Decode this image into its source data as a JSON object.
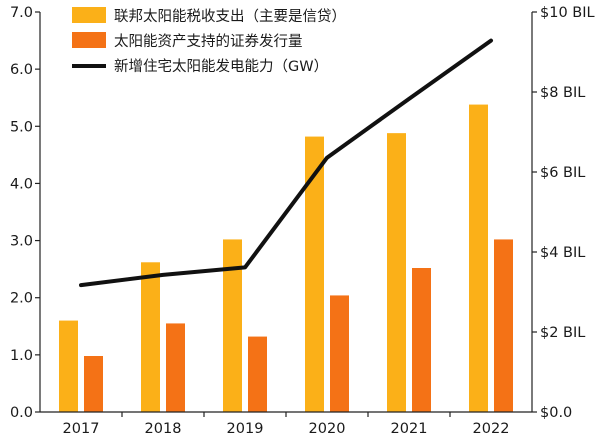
{
  "chart_data": {
    "type": "bar",
    "categories": [
      "2017",
      "2018",
      "2019",
      "2020",
      "2021",
      "2022"
    ],
    "series": [
      {
        "name": "联邦太阳能税收支出（主要是信贷）",
        "type": "bar",
        "axis": "left",
        "color": "#FBB018",
        "values": [
          1.6,
          2.62,
          3.02,
          4.82,
          4.88,
          5.38
        ]
      },
      {
        "name": "太阳能资产支持的证券发行量",
        "type": "bar",
        "axis": "left",
        "color": "#F47216",
        "values": [
          0.98,
          1.55,
          1.32,
          2.04,
          2.52,
          3.02
        ]
      },
      {
        "name": "新增住宅太阳能发电能力（GW）",
        "type": "line",
        "axis": "left",
        "color": "#111111",
        "values": [
          2.22,
          2.4,
          2.53,
          4.45,
          5.48,
          6.5
        ]
      }
    ],
    "y_left": {
      "min": 0,
      "max": 7,
      "ticks": [
        "0.0",
        "1.0",
        "2.0",
        "3.0",
        "4.0",
        "5.0",
        "6.0",
        "7.0"
      ]
    },
    "y_right": {
      "min": 0,
      "max": 10,
      "ticks": [
        "$0.0",
        "$2 BIL",
        "$4 BIL",
        "$6 BIL",
        "$8 BIL",
        "$10 BIL"
      ]
    },
    "grid": false,
    "legend_position": "top-left"
  }
}
